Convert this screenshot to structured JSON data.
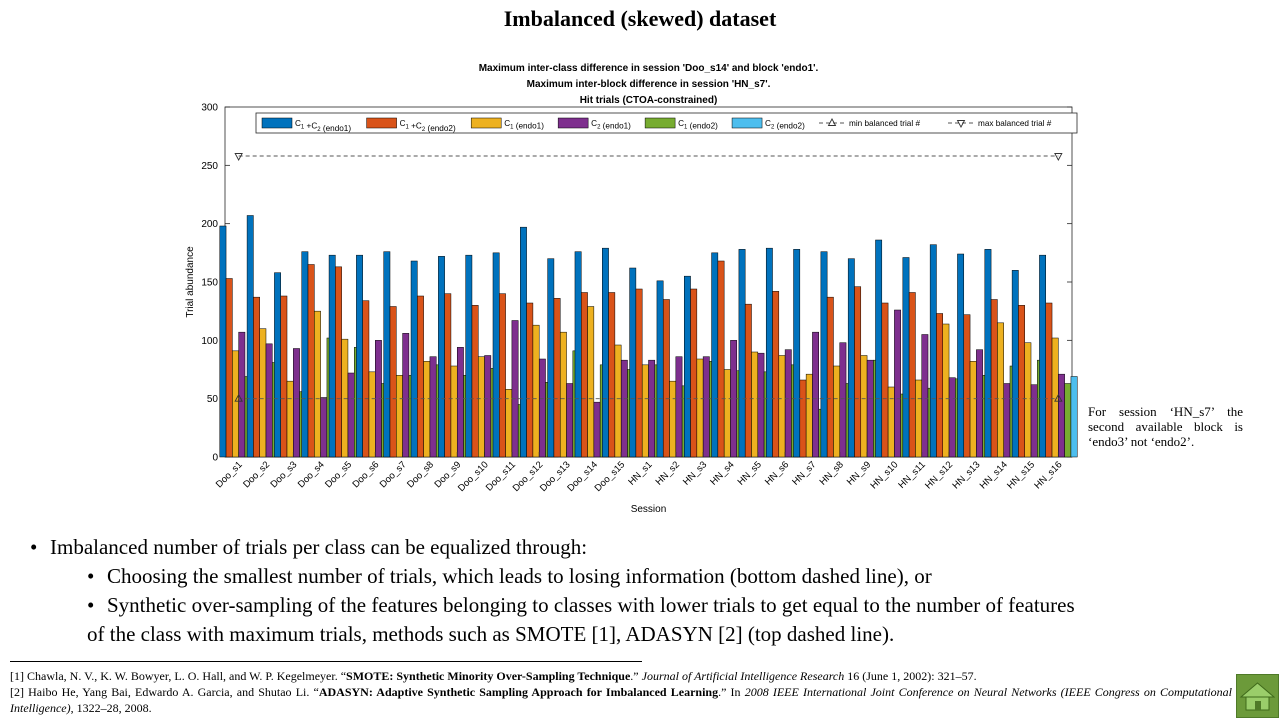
{
  "slide": {
    "title": "Imbalanced (skewed) dataset",
    "side_note": "For session ‘HN_s7’ the second available block is ‘endo3’ not ‘endo2’.",
    "bullets": [
      {
        "level": 1,
        "text": "Imbalanced number of trials per class can be equalized through:"
      },
      {
        "level": 2,
        "text": "Choosing the smallest number of trials, which leads to losing information (bottom dashed line), or"
      },
      {
        "level": 2,
        "text": "Synthetic over-sampling of the features belonging to classes with lower trials to get equal to the number of features"
      },
      {
        "level": 3,
        "text": "of the class with maximum trials, methods such as SMOTE  [1], ADASYN  [2] (top dashed line)."
      }
    ],
    "references": [
      {
        "prefix": "[1] Chawla, N. V., K. W. Bowyer, L. O. Hall, and W. P. Kegelmeyer. “",
        "title": "SMOTE:  Synthetic Minority Over-Sampling  Technique",
        "middle": ".” ",
        "venue": "Journal of Artificial Intelligence Research",
        "suffix": " 16 (June 1, 2002):  321–57."
      },
      {
        "prefix": "[2] Haibo He, Yang Bai, Edwardo A. Garcia, and Shutao Li. “",
        "title": "ADASYN:  Adaptive Synthetic Sampling Approach for Imbalanced Learning",
        "middle": ".”  In ",
        "venue": "2008 IEEE International Joint Conference on Neural Networks (IEEE Congress on Computational Intelligence)",
        "suffix": ", 1322–28,  2008."
      }
    ],
    "home_icon": "home-icon"
  },
  "chart_data": {
    "type": "bar",
    "title": [
      "Maximum inter-class difference in session 'Doo_s14' and block 'endo1'.",
      "Maximum inter-block difference in session 'HN_s7'.",
      "Hit trials (CTOA-constrained)"
    ],
    "xlabel": "Session",
    "ylabel": "Trial abundance",
    "ylim": [
      0,
      300
    ],
    "yticks": [
      0,
      50,
      100,
      150,
      200,
      250,
      300
    ],
    "grid": false,
    "legend_position": "top",
    "categories": [
      "Doo_s1",
      "Doo_s2",
      "Doo_s3",
      "Doo_s4",
      "Doo_s5",
      "Doo_s6",
      "Doo_s7",
      "Doo_s8",
      "Doo_s9",
      "Doo_s10",
      "Doo_s11",
      "Doo_s12",
      "Doo_s13",
      "Doo_s14",
      "Doo_s15",
      "HN_s1",
      "HN_s2",
      "HN_s3",
      "HN_s4",
      "HN_s5",
      "HN_s6",
      "HN_s7",
      "HN_s8",
      "HN_s9",
      "HN_s10",
      "HN_s11",
      "HN_s12",
      "HN_s13",
      "HN_s14",
      "HN_s15",
      "HN_s16"
    ],
    "series": [
      {
        "name": "C1+C2 (endo1)",
        "label_parts": [
          [
            "C",
            "1"
          ],
          [
            " +C",
            "2"
          ],
          [
            " (endo1)",
            ""
          ]
        ],
        "color": "#0072BD",
        "values": [
          198,
          207,
          158,
          176,
          173,
          173,
          176,
          168,
          172,
          173,
          175,
          197,
          170,
          176,
          179,
          162,
          151,
          155,
          175,
          178,
          179,
          178,
          176,
          170,
          186,
          171,
          182,
          174,
          178,
          160,
          173
        ]
      },
      {
        "name": "C1+C2 (endo2)",
        "label_parts": [
          [
            "C",
            "1"
          ],
          [
            " +C",
            "2"
          ],
          [
            " (endo2)",
            ""
          ]
        ],
        "color": "#D95319",
        "values": [
          153,
          137,
          138,
          165,
          163,
          134,
          129,
          138,
          140,
          130,
          140,
          132,
          136,
          141,
          141,
          144,
          135,
          144,
          168,
          131,
          142,
          66,
          137,
          146,
          132,
          141,
          123,
          122,
          135,
          130,
          132
        ]
      },
      {
        "name": "C1 (endo1)",
        "label_parts": [
          [
            "C",
            "1"
          ],
          [
            " (endo1)",
            ""
          ]
        ],
        "color": "#EDB120",
        "values": [
          91,
          110,
          65,
          125,
          101,
          73,
          70,
          82,
          78,
          86,
          58,
          113,
          107,
          129,
          96,
          79,
          65,
          84,
          75,
          90,
          87,
          71,
          78,
          87,
          60,
          66,
          114,
          82,
          115,
          98,
          102
        ]
      },
      {
        "name": "C2 (endo1)",
        "label_parts": [
          [
            "C",
            "2"
          ],
          [
            " (endo1)",
            ""
          ]
        ],
        "color": "#7E2F8E",
        "values": [
          107,
          97,
          93,
          51,
          72,
          100,
          106,
          86,
          94,
          87,
          117,
          84,
          63,
          47,
          83,
          83,
          86,
          86,
          100,
          89,
          92,
          107,
          98,
          83,
          126,
          105,
          68,
          92,
          63,
          62,
          71
        ]
      },
      {
        "name": "C1 (endo2)",
        "label_parts": [
          [
            "C",
            "1"
          ],
          [
            " (endo2)",
            ""
          ]
        ],
        "color": "#77AC30",
        "values": [
          69,
          81,
          56,
          102,
          94,
          63,
          70,
          79,
          70,
          76,
          45,
          64,
          91,
          79,
          75,
          79,
          61,
          82,
          74,
          73,
          79,
          41,
          63,
          83,
          54,
          59,
          67,
          70,
          78,
          83,
          63
        ]
      },
      {
        "name": "C2 (endo2)",
        "label_parts": [
          [
            "C",
            "2"
          ],
          [
            " (endo2)",
            ""
          ]
        ],
        "color": "#4DBEEE",
        "values": [
          84,
          56,
          82,
          63,
          69,
          68,
          59,
          59,
          70,
          54,
          96,
          68,
          45,
          62,
          66,
          65,
          74,
          62,
          94,
          58,
          63,
          25,
          74,
          63,
          78,
          82,
          56,
          52,
          57,
          47,
          69
        ]
      }
    ],
    "reference_lines": [
      {
        "name": "min balanced trial #",
        "value": 50,
        "marker": "up-triangle"
      },
      {
        "name": "max balanced trial #",
        "value": 258,
        "marker": "down-triangle"
      }
    ]
  }
}
